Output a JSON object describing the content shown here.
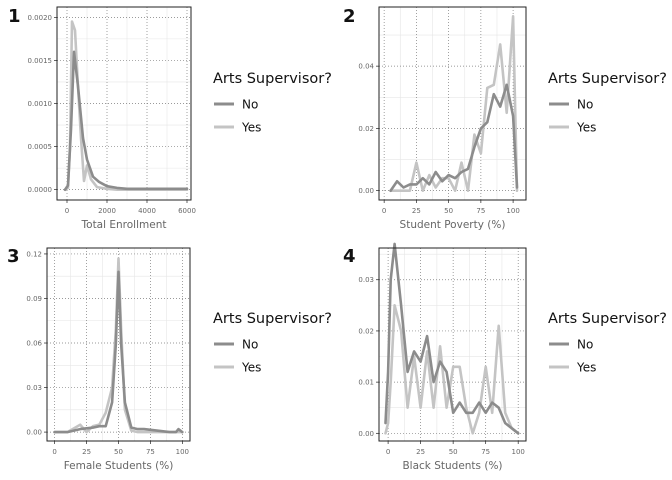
{
  "colors": {
    "no": "#8c8c8c",
    "yes": "#c4c4c4",
    "grid_major": "#7a7a7a",
    "grid_minor": "#e6e6e6",
    "axis_text": "#666666",
    "frame": "#222222"
  },
  "legend": {
    "title": "Arts Supervisor?",
    "items": [
      "No",
      "Yes"
    ]
  },
  "chart_data": [
    {
      "type": "line",
      "panel_label": "1",
      "xlabel": "Total Enrollment",
      "ylabel": "",
      "xlim": [
        -500,
        6200
      ],
      "ylim": [
        -0.00012,
        0.00212
      ],
      "xticks": [
        0,
        2000,
        4000,
        6000
      ],
      "xtick_labels": [
        "0",
        "2000",
        "4000",
        "6000"
      ],
      "yticks": [
        0.0,
        0.0005,
        0.001,
        0.0015,
        0.002
      ],
      "ytick_labels": [
        "0.0000",
        "0.0005",
        "0.0010",
        "0.0015",
        "0.0020"
      ],
      "grid": true,
      "legend_position": "right",
      "series": [
        {
          "name": "No",
          "x": [
            -100,
            50,
            200,
            350,
            550,
            800,
            1000,
            1300,
            1600,
            2000,
            2500,
            3000,
            3500,
            4000,
            5000,
            6000
          ],
          "y": [
            0.0,
            5e-05,
            0.0007,
            0.0016,
            0.0012,
            0.0006,
            0.00035,
            0.00015,
            9e-05,
            4e-05,
            2e-05,
            1e-05,
            1e-05,
            1e-05,
            1e-05,
            1e-05
          ]
        },
        {
          "name": "Yes",
          "x": [
            -100,
            50,
            150,
            250,
            400,
            550,
            700,
            850,
            1000,
            1200,
            1500,
            2000,
            2500,
            3000,
            4000,
            6000
          ],
          "y": [
            0.0,
            2e-05,
            0.0005,
            0.00195,
            0.00185,
            0.0012,
            0.0006,
            0.0001,
            0.00028,
            0.00012,
            3e-05,
            1e-05,
            0.0,
            0.0,
            0.0,
            0.0
          ]
        }
      ]
    },
    {
      "type": "line",
      "panel_label": "2",
      "xlabel": "Student Poverty (%)",
      "ylabel": "",
      "xlim": [
        -4,
        110
      ],
      "ylim": [
        -0.003,
        0.059
      ],
      "xticks": [
        0,
        25,
        50,
        75,
        100
      ],
      "xtick_labels": [
        "0",
        "25",
        "50",
        "75",
        "100"
      ],
      "yticks": [
        0.0,
        0.02,
        0.04
      ],
      "ytick_labels": [
        "0.00",
        "0.02",
        "0.04"
      ],
      "grid": true,
      "legend_position": "right",
      "series": [
        {
          "name": "No",
          "x": [
            5,
            10,
            15,
            20,
            25,
            30,
            35,
            40,
            45,
            50,
            55,
            60,
            65,
            70,
            75,
            80,
            85,
            90,
            95,
            100,
            103
          ],
          "y": [
            0.0,
            0.003,
            0.001,
            0.002,
            0.002,
            0.004,
            0.002,
            0.006,
            0.003,
            0.005,
            0.004,
            0.006,
            0.007,
            0.014,
            0.02,
            0.022,
            0.031,
            0.027,
            0.034,
            0.024,
            0.001
          ]
        },
        {
          "name": "Yes",
          "x": [
            5,
            10,
            15,
            20,
            25,
            30,
            35,
            40,
            45,
            50,
            55,
            60,
            65,
            70,
            75,
            80,
            85,
            90,
            95,
            100,
            103
          ],
          "y": [
            0.0,
            0.0,
            0.0,
            0.0,
            0.009,
            0.0,
            0.005,
            0.001,
            0.004,
            0.004,
            0.0,
            0.009,
            0.0,
            0.018,
            0.012,
            0.033,
            0.034,
            0.047,
            0.025,
            0.056,
            0.0
          ]
        }
      ]
    },
    {
      "type": "line",
      "panel_label": "3",
      "xlabel": "Female Students (%)",
      "ylabel": "",
      "xlim": [
        -6,
        106
      ],
      "ylim": [
        -0.006,
        0.124
      ],
      "xticks": [
        0,
        25,
        50,
        75,
        100
      ],
      "xtick_labels": [
        "0",
        "25",
        "50",
        "75",
        "100"
      ],
      "yticks": [
        0.0,
        0.03,
        0.06,
        0.09,
        0.12
      ],
      "ytick_labels": [
        "0.00",
        "0.03",
        "0.06",
        "0.09",
        "0.12"
      ],
      "grid": true,
      "legend_position": "right",
      "series": [
        {
          "name": "No",
          "x": [
            0,
            10,
            20,
            30,
            35,
            40,
            45,
            48,
            50,
            52,
            55,
            60,
            65,
            70,
            80,
            90,
            95,
            97,
            100
          ],
          "y": [
            0.0,
            0.0,
            0.002,
            0.003,
            0.004,
            0.004,
            0.02,
            0.06,
            0.108,
            0.06,
            0.02,
            0.003,
            0.002,
            0.002,
            0.001,
            0.0,
            0.0,
            0.002,
            0.0
          ]
        },
        {
          "name": "Yes",
          "x": [
            0,
            10,
            20,
            25,
            30,
            35,
            40,
            45,
            48,
            50,
            52,
            55,
            60,
            65,
            70,
            80,
            90,
            100
          ],
          "y": [
            0.0,
            0.0,
            0.005,
            0.0,
            0.004,
            0.005,
            0.013,
            0.03,
            0.07,
            0.117,
            0.07,
            0.015,
            0.001,
            0.0,
            0.0,
            0.0,
            0.0,
            0.0
          ]
        }
      ]
    },
    {
      "type": "line",
      "panel_label": "4",
      "xlabel": "Black Students (%)",
      "ylabel": "",
      "xlim": [
        -7,
        106
      ],
      "ylim": [
        -0.0015,
        0.0362
      ],
      "xticks": [
        0,
        25,
        50,
        75,
        100
      ],
      "xtick_labels": [
        "0",
        "25",
        "50",
        "75",
        "100"
      ],
      "yticks": [
        0.0,
        0.01,
        0.02,
        0.03
      ],
      "ytick_labels": [
        "0.00",
        "0.01",
        "0.02",
        "0.03"
      ],
      "grid": true,
      "legend_position": "right",
      "series": [
        {
          "name": "No",
          "x": [
            -2,
            0,
            2,
            5,
            10,
            15,
            20,
            25,
            30,
            35,
            40,
            45,
            50,
            55,
            60,
            65,
            70,
            75,
            80,
            85,
            90,
            95,
            100
          ],
          "y": [
            0.002,
            0.012,
            0.03,
            0.037,
            0.025,
            0.012,
            0.016,
            0.014,
            0.019,
            0.01,
            0.014,
            0.012,
            0.004,
            0.006,
            0.004,
            0.004,
            0.006,
            0.004,
            0.006,
            0.005,
            0.002,
            0.001,
            0.0
          ]
        },
        {
          "name": "Yes",
          "x": [
            -2,
            0,
            2,
            5,
            10,
            15,
            20,
            25,
            30,
            35,
            40,
            45,
            50,
            55,
            60,
            65,
            70,
            75,
            80,
            85,
            90,
            95,
            100
          ],
          "y": [
            0.0,
            0.002,
            0.01,
            0.025,
            0.02,
            0.005,
            0.015,
            0.005,
            0.016,
            0.005,
            0.017,
            0.005,
            0.013,
            0.013,
            0.005,
            0.0,
            0.004,
            0.013,
            0.004,
            0.021,
            0.004,
            0.001,
            0.0
          ]
        }
      ]
    }
  ]
}
